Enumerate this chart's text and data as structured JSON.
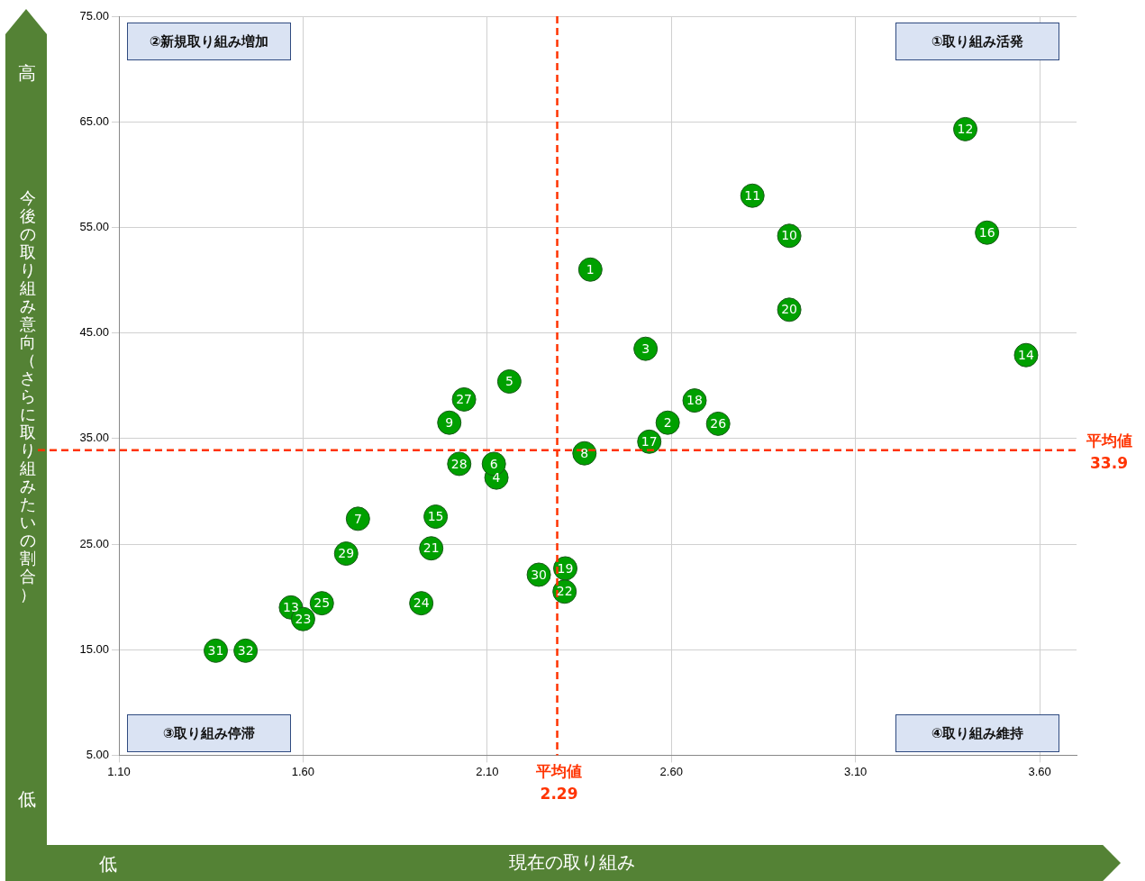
{
  "chart_data": {
    "type": "scatter",
    "xlabel": "現在の取り組み",
    "ylabel": "今後の取り組み意向（さらに取り組みたいの割合）",
    "x": [
      2.38,
      2.59,
      2.53,
      2.125,
      2.16,
      2.118,
      1.749,
      2.364,
      1.997,
      2.92,
      2.82,
      3.398,
      1.567,
      3.563,
      1.96,
      3.457,
      2.54,
      2.663,
      2.312,
      2.92,
      1.948,
      2.31,
      1.6,
      1.921,
      1.651,
      2.727,
      2.037,
      2.024,
      1.717,
      2.24,
      1.363,
      1.444
    ],
    "series": [
      {
        "color": "#00a000",
        "values": [
          51.0,
          36.5,
          43.5,
          31.3,
          40.4,
          32.6,
          27.4,
          33.6,
          36.5,
          54.2,
          58.0,
          64.3,
          19.0,
          42.9,
          27.6,
          54.5,
          34.7,
          38.6,
          22.7,
          47.2,
          24.6,
          20.5,
          17.9,
          19.4,
          19.4,
          36.4,
          38.7,
          32.6,
          24.1,
          22.1,
          14.9,
          14.9
        ]
      }
    ],
    "xlim": [
      1.1,
      3.7
    ],
    "xticks": [
      {
        "value": 1.1,
        "label": "1.10"
      },
      {
        "value": 1.6,
        "label": "1.60"
      },
      {
        "value": 2.1,
        "label": "2.10"
      },
      {
        "value": 2.6,
        "label": "2.60"
      },
      {
        "value": 3.1,
        "label": "3.10"
      },
      {
        "value": 3.6,
        "label": "3.60"
      }
    ],
    "ylim": [
      5,
      75
    ],
    "yticks": [
      {
        "value": 5,
        "label": "5.00"
      },
      {
        "value": 15,
        "label": "15.00"
      },
      {
        "value": 25,
        "label": "25.00"
      },
      {
        "value": 35,
        "label": "35.00"
      },
      {
        "value": 45,
        "label": "45.00"
      },
      {
        "value": 55,
        "label": "55.00"
      },
      {
        "value": 65,
        "label": "65.00"
      },
      {
        "value": 75,
        "label": "75.00"
      }
    ],
    "ref_lines": [
      {
        "axis": "x",
        "value": 2.29,
        "label": "平均値\n2.29",
        "color": "#ff3300",
        "line_style": "dashed"
      },
      {
        "axis": "y",
        "value": 33.9,
        "label": "平均値\n33.9",
        "color": "#ff3300",
        "line_style": "dashed"
      }
    ],
    "annotations": [
      "①取り組み活発",
      "②新規取り組み増加",
      "③取り組み停滞",
      "④取り組み維持",
      "高",
      "低",
      "低",
      {
        "text": "1",
        "x": 2.38,
        "y": 51.0
      },
      {
        "text": "2",
        "x": 2.59,
        "y": 36.5
      },
      {
        "text": "3",
        "x": 2.53,
        "y": 43.5
      },
      {
        "text": "4",
        "x": 2.125,
        "y": 31.3
      },
      {
        "text": "5",
        "x": 2.16,
        "y": 40.4
      },
      {
        "text": "6",
        "x": 2.118,
        "y": 32.6
      },
      {
        "text": "7",
        "x": 1.749,
        "y": 27.4
      },
      {
        "text": "8",
        "x": 2.364,
        "y": 33.6
      },
      {
        "text": "9",
        "x": 1.997,
        "y": 36.5
      },
      {
        "text": "10",
        "x": 2.92,
        "y": 54.2
      },
      {
        "text": "11",
        "x": 2.82,
        "y": 58.0
      },
      {
        "text": "12",
        "x": 3.398,
        "y": 64.3
      },
      {
        "text": "13",
        "x": 1.567,
        "y": 19.0
      },
      {
        "text": "14",
        "x": 3.563,
        "y": 42.9
      },
      {
        "text": "15",
        "x": 1.96,
        "y": 27.6
      },
      {
        "text": "16",
        "x": 3.457,
        "y": 54.5
      },
      {
        "text": "17",
        "x": 2.54,
        "y": 34.7
      },
      {
        "text": "18",
        "x": 2.663,
        "y": 38.6
      },
      {
        "text": "19",
        "x": 2.312,
        "y": 22.7
      },
      {
        "text": "20",
        "x": 2.92,
        "y": 47.2
      },
      {
        "text": "21",
        "x": 1.948,
        "y": 24.6
      },
      {
        "text": "22",
        "x": 2.31,
        "y": 20.5
      },
      {
        "text": "23",
        "x": 1.6,
        "y": 17.9
      },
      {
        "text": "24",
        "x": 1.921,
        "y": 19.4
      },
      {
        "text": "25",
        "x": 1.651,
        "y": 19.4
      },
      {
        "text": "26",
        "x": 2.727,
        "y": 36.4
      },
      {
        "text": "27",
        "x": 2.037,
        "y": 38.7
      },
      {
        "text": "28",
        "x": 2.024,
        "y": 32.6
      },
      {
        "text": "29",
        "x": 1.717,
        "y": 24.1
      },
      {
        "text": "30",
        "x": 2.24,
        "y": 22.1
      },
      {
        "text": "31",
        "x": 1.363,
        "y": 14.9
      },
      {
        "text": "32",
        "x": 1.444,
        "y": 14.9
      }
    ],
    "grid": true,
    "legend": false,
    "marker": "circle"
  }
}
